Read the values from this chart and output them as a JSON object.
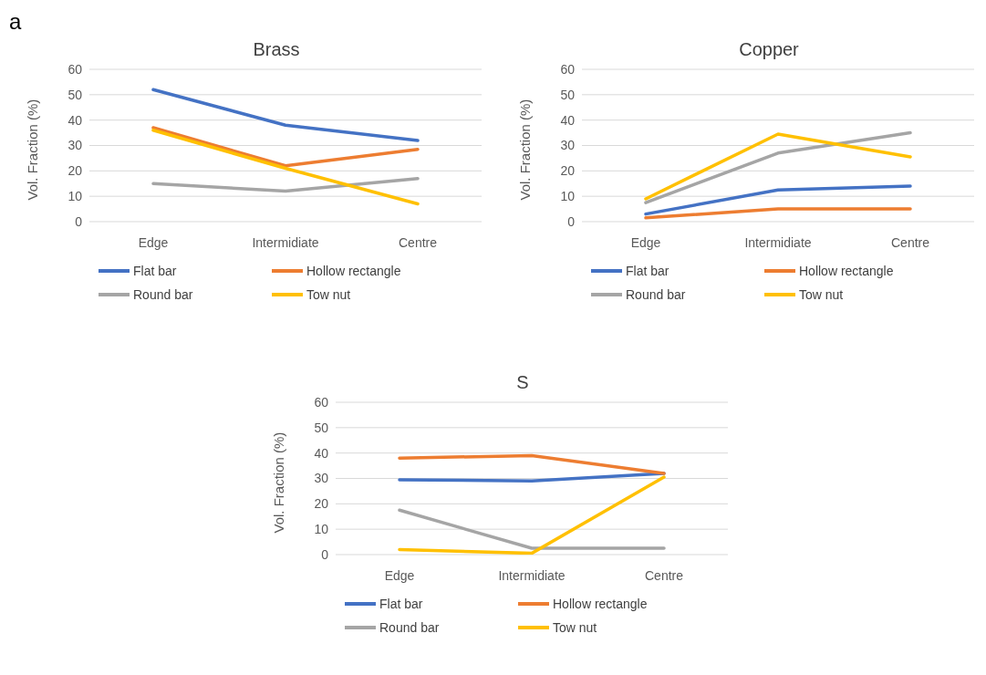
{
  "chart_data": [
    {
      "type": "line",
      "title": "Brass",
      "ylabel": "Vol. Fraction (%)",
      "annotations": [
        "a"
      ],
      "categories": [
        "Edge",
        "Intermidiate",
        "Centre"
      ],
      "ylim": [
        0,
        60
      ],
      "yticks": [
        0,
        10,
        20,
        30,
        40,
        50,
        60
      ],
      "grid": "y",
      "legend": "bottom",
      "marker": "none",
      "line_style": "solid",
      "series": [
        {
          "name": "Flat bar",
          "color": "#4472c4",
          "values": [
            52,
            38,
            32
          ]
        },
        {
          "name": "Hollow rectangle",
          "color": "#ed7d31",
          "values": [
            37,
            22,
            28.5
          ]
        },
        {
          "name": "Round bar",
          "color": "#a5a5a5",
          "values": [
            15,
            12,
            17
          ]
        },
        {
          "name": "Tow nut",
          "color": "#ffc000",
          "values": [
            36,
            21,
            7
          ]
        }
      ]
    },
    {
      "type": "line",
      "title": "Copper",
      "ylabel": "Vol. Fraction (%)",
      "categories": [
        "Edge",
        "Intermidiate",
        "Centre"
      ],
      "ylim": [
        0,
        60
      ],
      "yticks": [
        0,
        10,
        20,
        30,
        40,
        50,
        60
      ],
      "grid": "y",
      "legend": "bottom",
      "marker": "none",
      "line_style": "solid",
      "series": [
        {
          "name": "Flat bar",
          "color": "#4472c4",
          "values": [
            3,
            12.5,
            14
          ]
        },
        {
          "name": "Hollow rectangle",
          "color": "#ed7d31",
          "values": [
            1.5,
            5,
            5
          ]
        },
        {
          "name": "Round bar",
          "color": "#a5a5a5",
          "values": [
            7.5,
            27,
            35
          ]
        },
        {
          "name": "Tow nut",
          "color": "#ffc000",
          "values": [
            9,
            34.5,
            25.5
          ]
        }
      ]
    },
    {
      "type": "line",
      "title": "S",
      "ylabel": "Vol. Fraction (%)",
      "categories": [
        "Edge",
        "Intermidiate",
        "Centre"
      ],
      "ylim": [
        0,
        60
      ],
      "yticks": [
        0,
        10,
        20,
        30,
        40,
        50,
        60
      ],
      "grid": "y",
      "legend": "bottom",
      "marker": "none",
      "line_style": "solid",
      "series": [
        {
          "name": "Flat bar",
          "color": "#4472c4",
          "values": [
            29.5,
            29,
            32
          ]
        },
        {
          "name": "Hollow rectangle",
          "color": "#ed7d31",
          "values": [
            38,
            39,
            32
          ]
        },
        {
          "name": "Round bar",
          "color": "#a5a5a5",
          "values": [
            17.5,
            2.5,
            2.5
          ]
        },
        {
          "name": "Tow nut",
          "color": "#ffc000",
          "values": [
            2,
            0.5,
            30.5
          ]
        }
      ]
    }
  ]
}
